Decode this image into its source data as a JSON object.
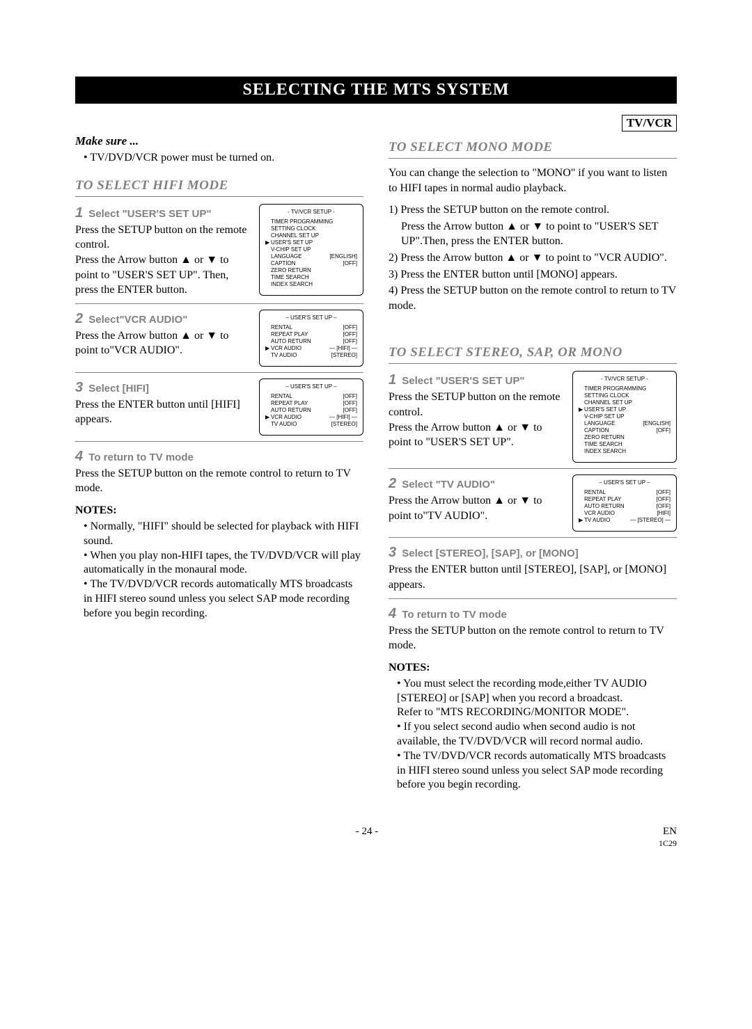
{
  "title": "SELECTING THE MTS SYSTEM",
  "badge": "TV/VCR",
  "makesure_label": "Make sure ...",
  "makesure_items": [
    "TV/DVD/VCR power must be turned on."
  ],
  "hifi": {
    "heading": "TO SELECT HIFI MODE",
    "steps": [
      {
        "num": "1",
        "label": "Select \"USER'S SET UP\"",
        "body": "Press the SETUP button on the remote control.\nPress the Arrow button ▲ or ▼ to point to \"USER'S SET UP\". Then, press the ENTER button.",
        "osd": "setup_vcr"
      },
      {
        "num": "2",
        "label": "Select\"VCR AUDIO\"",
        "body": "Press the Arrow button ▲ or ▼ to point to\"VCR AUDIO\".",
        "osd": "users_vcr"
      },
      {
        "num": "3",
        "label": "Select [HIFI]",
        "body": "Press the ENTER button until [HIFI] appears.",
        "osd": "users_vcr"
      },
      {
        "num": "4",
        "label": "To return to TV mode",
        "body": "Press the SETUP button on the remote control to return to TV mode."
      }
    ],
    "notes_label": "NOTES:",
    "notes": [
      "Normally, \"HIFI\" should be selected for playback with HIFI sound.",
      "When you play non-HIFI tapes, the TV/DVD/VCR will play automatically in the monaural mode.",
      "The TV/DVD/VCR records automatically MTS broadcasts in HIFI stereo sound unless you select SAP mode recording before you begin recording."
    ]
  },
  "mono": {
    "heading": "TO SELECT MONO MODE",
    "intro": "You can change the selection to \"MONO\" if you want to listen to HIFI tapes in normal audio playback.",
    "steps": [
      "1) Press the SETUP button on the remote control.",
      "Press the Arrow button ▲ or ▼ to point to \"USER'S SET UP\".Then, press the ENTER button.",
      "2) Press the Arrow button ▲ or ▼ to point to \"VCR AUDIO\".",
      "3) Press the ENTER button until [MONO] appears.",
      "4) Press the SETUP button on the remote control to return to TV mode."
    ]
  },
  "stereo": {
    "heading": "TO SELECT STEREO, SAP, OR MONO",
    "steps": [
      {
        "num": "1",
        "label": "Select \"USER'S SET UP\"",
        "body": "Press the SETUP button on the remote control.\nPress the Arrow button ▲ or ▼ to point to \"USER'S SET UP\".",
        "osd": "setup_user"
      },
      {
        "num": "2",
        "label": "Select \"TV AUDIO\"",
        "body": "Press the Arrow button ▲ or ▼ to point to\"TV AUDIO\".",
        "osd": "users_tv"
      },
      {
        "num": "3",
        "label": "Select [STEREO], [SAP], or [MONO]",
        "body": "Press the ENTER button until [STEREO], [SAP], or [MONO] appears."
      },
      {
        "num": "4",
        "label": "To return to TV mode",
        "body": "Press the SETUP button on the remote control to return to TV mode."
      }
    ],
    "notes_label": "NOTES:",
    "notes": [
      "You must select the recording mode,either TV AUDIO [STEREO] or [SAP] when you record a broadcast.\nRefer to \"MTS RECORDING/MONITOR MODE\".",
      "If you select second audio when second audio is not\navailable, the TV/DVD/VCR will record normal audio.",
      "The TV/DVD/VCR records automatically MTS broadcasts in HIFI stereo sound unless you select SAP mode recording before you begin recording."
    ]
  },
  "osd": {
    "setup_vcr": {
      "title": "- TV/VCR SETUP -",
      "rows": [
        {
          "ptr": "",
          "l": "TIMER PROGRAMMING",
          "v": ""
        },
        {
          "ptr": "",
          "l": "SETTING CLOCK",
          "v": ""
        },
        {
          "ptr": "",
          "l": "CHANNEL SET UP",
          "v": ""
        },
        {
          "ptr": "▶",
          "l": "USER'S SET UP",
          "v": ""
        },
        {
          "ptr": "",
          "l": "V-CHIP SET UP",
          "v": ""
        },
        {
          "ptr": "",
          "l": "LANGUAGE",
          "v": "[ENGLISH]"
        },
        {
          "ptr": "",
          "l": "CAPTION",
          "v": "[OFF]"
        },
        {
          "ptr": "",
          "l": "ZERO RETURN",
          "v": ""
        },
        {
          "ptr": "",
          "l": "TIME SEARCH",
          "v": ""
        },
        {
          "ptr": "",
          "l": "INDEX SEARCH",
          "v": ""
        }
      ]
    },
    "setup_user": {
      "title": "- TV/VCR SETUP -",
      "rows": [
        {
          "ptr": "",
          "l": "TIMER PROGRAMMING",
          "v": ""
        },
        {
          "ptr": "",
          "l": "SETTING CLOCK",
          "v": ""
        },
        {
          "ptr": "",
          "l": "CHANNEL SET UP",
          "v": ""
        },
        {
          "ptr": "▶",
          "l": "USER'S SET UP",
          "v": ""
        },
        {
          "ptr": "",
          "l": "V-CHIP SET UP",
          "v": ""
        },
        {
          "ptr": "",
          "l": "LANGUAGE",
          "v": "[ENGLISH]"
        },
        {
          "ptr": "",
          "l": "CAPTION",
          "v": "[OFF]"
        },
        {
          "ptr": "",
          "l": "ZERO RETURN",
          "v": ""
        },
        {
          "ptr": "",
          "l": "TIME SEARCH",
          "v": ""
        },
        {
          "ptr": "",
          "l": "INDEX SEARCH",
          "v": ""
        }
      ]
    },
    "users_vcr": {
      "title": "– USER'S SET UP –",
      "rows": [
        {
          "ptr": "",
          "l": "RENTAL",
          "v": "[OFF]"
        },
        {
          "ptr": "",
          "l": "REPEAT PLAY",
          "v": "[OFF]"
        },
        {
          "ptr": "",
          "l": "AUTO RETURN",
          "v": "[OFF]"
        },
        {
          "ptr": "▶",
          "l": "VCR AUDIO",
          "v": "— [HIFI] —"
        },
        {
          "ptr": "",
          "l": "TV AUDIO",
          "v": "[STEREO]"
        }
      ]
    },
    "users_tv": {
      "title": "– USER'S SET UP –",
      "rows": [
        {
          "ptr": "",
          "l": "RENTAL",
          "v": "[OFF]"
        },
        {
          "ptr": "",
          "l": "REPEAT PLAY",
          "v": "[OFF]"
        },
        {
          "ptr": "",
          "l": "AUTO RETURN",
          "v": "[OFF]"
        },
        {
          "ptr": "",
          "l": "VCR AUDIO",
          "v": "[HIFI]"
        },
        {
          "ptr": "▶",
          "l": "TV AUDIO",
          "v": "— [STEREO] —"
        }
      ]
    }
  },
  "footer": {
    "page": "- 24 -",
    "lang": "EN",
    "code": "1C29"
  }
}
